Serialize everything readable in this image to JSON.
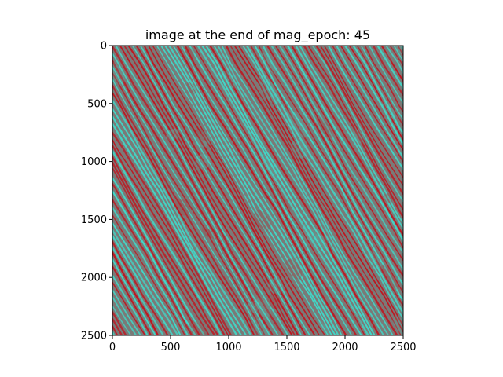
{
  "chart_data": {
    "type": "heatmap",
    "title": "image at the end of mag_epoch: 45",
    "xlabel": "",
    "ylabel": "",
    "xlim": [
      0,
      2500
    ],
    "ylim": [
      2500,
      0
    ],
    "x_ticks": [
      0,
      500,
      1000,
      1500,
      2000,
      2500
    ],
    "y_ticks": [
      0,
      500,
      1000,
      1500,
      2000,
      2500
    ],
    "x_tick_labels": [
      "0",
      "500",
      "1000",
      "1500",
      "2000",
      "2500"
    ],
    "y_tick_labels": [
      "0",
      "500",
      "1000",
      "1500",
      "2000",
      "2500"
    ],
    "y_axis_inverted": true,
    "grid": false,
    "colors": {
      "stripe_red": "#c0141e",
      "stripe_cyan": "#40d8c8",
      "stripe_gray": "#7a7a78",
      "axis": "#000000",
      "background": "#ffffff"
    }
  }
}
